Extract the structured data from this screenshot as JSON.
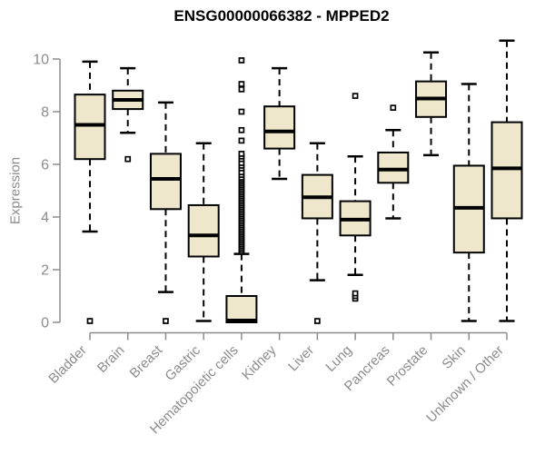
{
  "chart_data": {
    "type": "boxplot",
    "title": "ENSG00000066382 - MPPED2",
    "xlabel": "",
    "ylabel": "Expression",
    "ylim": [
      0,
      10.8
    ],
    "yticks": [
      0,
      2,
      4,
      6,
      8,
      10
    ],
    "grid": false,
    "legend": null,
    "colors": {
      "box_fill": "#eee7cb",
      "box_stroke": "#000000",
      "median": "#000000",
      "whisker": "#000000",
      "outlier_fill": "#ffffff",
      "outlier_stroke": "#000000",
      "axis": "#8c8c8c",
      "tick_label": "#8c8c8c",
      "title": "#000000",
      "background": "#ffffff"
    },
    "categories": [
      {
        "label": "Bladder",
        "whisker_low": 3.45,
        "q1": 6.2,
        "median": 7.5,
        "q3": 8.65,
        "whisker_high": 9.9,
        "outliers": [
          0.05
        ]
      },
      {
        "label": "Brain",
        "whisker_low": 7.2,
        "q1": 8.1,
        "median": 8.45,
        "q3": 8.8,
        "whisker_high": 9.65,
        "outliers": [
          6.2
        ]
      },
      {
        "label": "Breast",
        "whisker_low": 1.15,
        "q1": 4.3,
        "median": 5.45,
        "q3": 6.4,
        "whisker_high": 8.35,
        "outliers": [
          0.05
        ]
      },
      {
        "label": "Gastric",
        "whisker_low": 0.05,
        "q1": 2.5,
        "median": 3.3,
        "q3": 4.45,
        "whisker_high": 6.8,
        "outliers": []
      },
      {
        "label": "Hematopoietic cells",
        "whisker_low": 0.0,
        "q1": 0.0,
        "median": 0.07,
        "q3": 1.0,
        "whisker_high": 2.6,
        "outliers": [
          2.7,
          2.77,
          2.84,
          2.91,
          2.98,
          3.05,
          3.12,
          3.19,
          3.26,
          3.33,
          3.4,
          3.47,
          3.54,
          3.61,
          3.68,
          3.75,
          3.82,
          3.89,
          3.96,
          4.03,
          4.1,
          4.17,
          4.24,
          4.31,
          4.38,
          4.45,
          4.52,
          4.59,
          4.66,
          4.73,
          4.8,
          4.87,
          4.94,
          5.01,
          5.08,
          5.15,
          5.22,
          5.29,
          5.36,
          5.43,
          5.5,
          5.6,
          5.7,
          5.85,
          5.95,
          6.05,
          6.2,
          6.3,
          6.4,
          6.9,
          7.3,
          8.0,
          8.85,
          9.05,
          9.95
        ]
      },
      {
        "label": "Kidney",
        "whisker_low": 5.45,
        "q1": 6.6,
        "median": 7.25,
        "q3": 8.2,
        "whisker_high": 9.65,
        "outliers": []
      },
      {
        "label": "Liver",
        "whisker_low": 1.6,
        "q1": 3.95,
        "median": 4.75,
        "q3": 5.6,
        "whisker_high": 6.8,
        "outliers": [
          0.05
        ]
      },
      {
        "label": "Lung",
        "whisker_low": 1.8,
        "q1": 3.3,
        "median": 3.9,
        "q3": 4.6,
        "whisker_high": 6.3,
        "outliers": [
          0.9,
          1.0,
          1.1,
          8.6
        ]
      },
      {
        "label": "Pancreas",
        "whisker_low": 3.95,
        "q1": 5.3,
        "median": 5.8,
        "q3": 6.45,
        "whisker_high": 7.3,
        "outliers": [
          8.15
        ]
      },
      {
        "label": "Prostate",
        "whisker_low": 6.35,
        "q1": 7.8,
        "median": 8.5,
        "q3": 9.15,
        "whisker_high": 10.25,
        "outliers": []
      },
      {
        "label": "Skin",
        "whisker_low": 0.05,
        "q1": 2.65,
        "median": 4.35,
        "q3": 5.95,
        "whisker_high": 9.05,
        "outliers": []
      },
      {
        "label": "Unknown / Other",
        "whisker_low": 0.05,
        "q1": 3.95,
        "median": 5.85,
        "q3": 7.6,
        "whisker_high": 10.7,
        "outliers": []
      }
    ]
  }
}
